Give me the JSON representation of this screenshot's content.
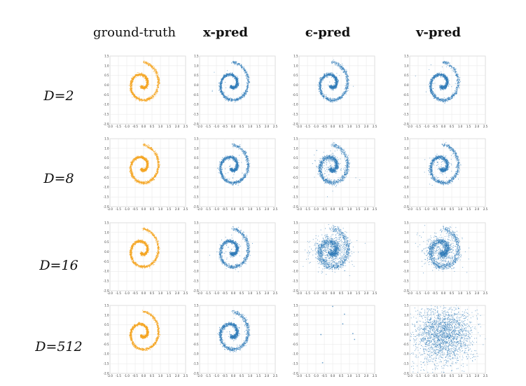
{
  "column_titles": [
    "ground-truth",
    "x-pred",
    "ϵ-pred",
    "v-pred"
  ],
  "row_labels": [
    "D=2",
    "D=8",
    "D=16",
    "D=512"
  ],
  "colors": {
    "ground_truth": "#f5a623",
    "prediction": "#2f7ab8"
  },
  "chart_data": {
    "type": "scatter",
    "layout": "grid",
    "rows": [
      "D=2",
      "D=8",
      "D=16",
      "D=512"
    ],
    "columns": [
      "ground-truth",
      "x-pred",
      "ϵ-pred",
      "v-pred"
    ],
    "xlim": [
      -2.0,
      2.5
    ],
    "ylim": [
      -2.0,
      1.5
    ],
    "xticks": [
      "-2.0",
      "-1.5",
      "-1.0",
      "-0.5",
      "0.0",
      "0.5",
      "1.0",
      "1.5",
      "2.0",
      "2.5"
    ],
    "yticks": [
      "1.5",
      "1.0",
      "0.5",
      "0.0",
      "-0.5",
      "-1.0",
      "-1.5",
      "-2.0"
    ],
    "grid": true,
    "distribution": "2D spiral",
    "panels": [
      {
        "row": "D=2",
        "column": "ground-truth",
        "pattern": "spiral",
        "noise": 0.035,
        "outlier_fraction": 0
      },
      {
        "row": "D=2",
        "column": "x-pred",
        "pattern": "spiral",
        "noise": 0.04,
        "outlier_fraction": 0.01
      },
      {
        "row": "D=2",
        "column": "ϵ-pred",
        "pattern": "spiral",
        "noise": 0.045,
        "outlier_fraction": 0.01
      },
      {
        "row": "D=2",
        "column": "v-pred",
        "pattern": "spiral",
        "noise": 0.045,
        "outlier_fraction": 0.01
      },
      {
        "row": "D=8",
        "column": "ground-truth",
        "pattern": "spiral",
        "noise": 0.035,
        "outlier_fraction": 0
      },
      {
        "row": "D=8",
        "column": "x-pred",
        "pattern": "spiral",
        "noise": 0.045,
        "outlier_fraction": 0.02
      },
      {
        "row": "D=8",
        "column": "ϵ-pred",
        "pattern": "spiral",
        "noise": 0.06,
        "outlier_fraction": 0.08
      },
      {
        "row": "D=8",
        "column": "v-pred",
        "pattern": "spiral",
        "noise": 0.05,
        "outlier_fraction": 0.04
      },
      {
        "row": "D=16",
        "column": "ground-truth",
        "pattern": "spiral",
        "noise": 0.035,
        "outlier_fraction": 0
      },
      {
        "row": "D=16",
        "column": "x-pred",
        "pattern": "spiral",
        "noise": 0.05,
        "outlier_fraction": 0.02
      },
      {
        "row": "D=16",
        "column": "ϵ-pred",
        "pattern": "spiral",
        "noise": 0.09,
        "outlier_fraction": 0.35
      },
      {
        "row": "D=16",
        "column": "v-pred",
        "pattern": "spiral",
        "noise": 0.08,
        "outlier_fraction": 0.3
      },
      {
        "row": "D=512",
        "column": "ground-truth",
        "pattern": "spiral",
        "noise": 0.035,
        "outlier_fraction": 0
      },
      {
        "row": "D=512",
        "column": "x-pred",
        "pattern": "spiral",
        "noise": 0.05,
        "outlier_fraction": 0.02
      },
      {
        "row": "D=512",
        "column": "ϵ-pred",
        "pattern": "sparse",
        "points": [
          [
            0.0,
            1.45
          ],
          [
            0.7,
            1.05
          ],
          [
            0.6,
            0.55
          ],
          [
            -0.7,
            0.0
          ],
          [
            1.2,
            0.05
          ],
          [
            1.3,
            -0.25
          ],
          [
            -0.6,
            -1.45
          ]
        ]
      },
      {
        "row": "D=512",
        "column": "v-pred",
        "pattern": "gaussian-blob",
        "center": [
          0.0,
          0.0
        ],
        "std": [
          0.9,
          0.75
        ]
      }
    ]
  }
}
